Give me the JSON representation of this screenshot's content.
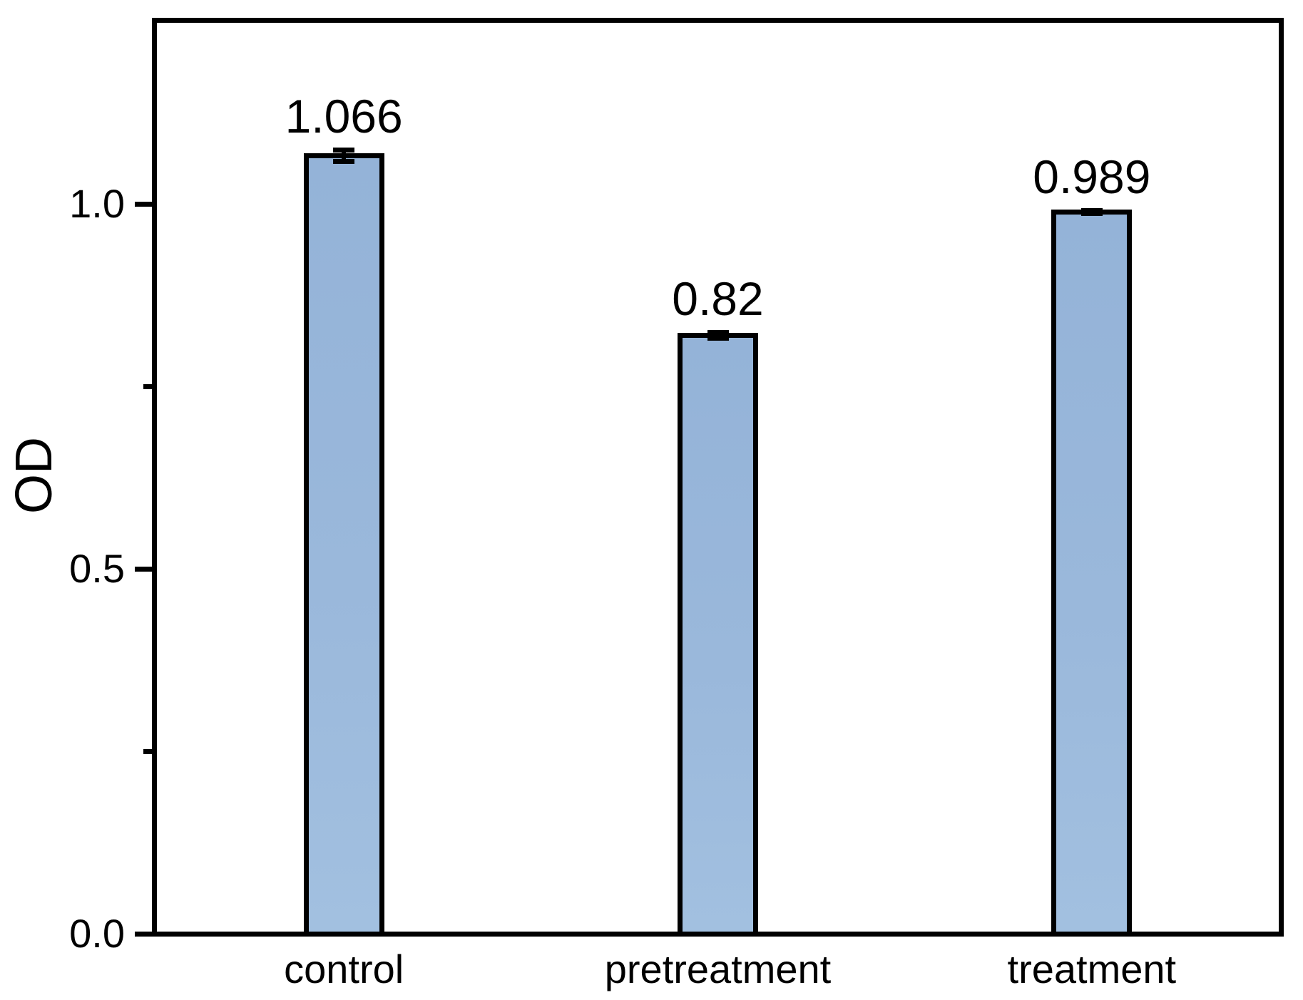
{
  "chart_data": {
    "type": "bar",
    "title": "",
    "xlabel": "",
    "ylabel": "OD",
    "categories": [
      "control",
      "pretreatment",
      "treatment"
    ],
    "values": [
      1.066,
      0.82,
      0.989
    ],
    "value_labels": [
      "1.066",
      "0.82",
      "0.989"
    ],
    "errors": [
      0.008,
      0.004,
      0.002
    ],
    "ylim": [
      0,
      1.25
    ],
    "y_major_ticks": [
      {
        "value": 0.0,
        "label": "0.0"
      },
      {
        "value": 0.5,
        "label": "0.5"
      },
      {
        "value": 1.0,
        "label": "1.0"
      }
    ],
    "y_minor_ticks": [
      0.25,
      0.75
    ],
    "grid": false,
    "legend": null,
    "bar_fill_color": "#9ab8db",
    "bar_border_color": "#000000",
    "axis_color": "#000000",
    "background_color": "#ffffff"
  }
}
